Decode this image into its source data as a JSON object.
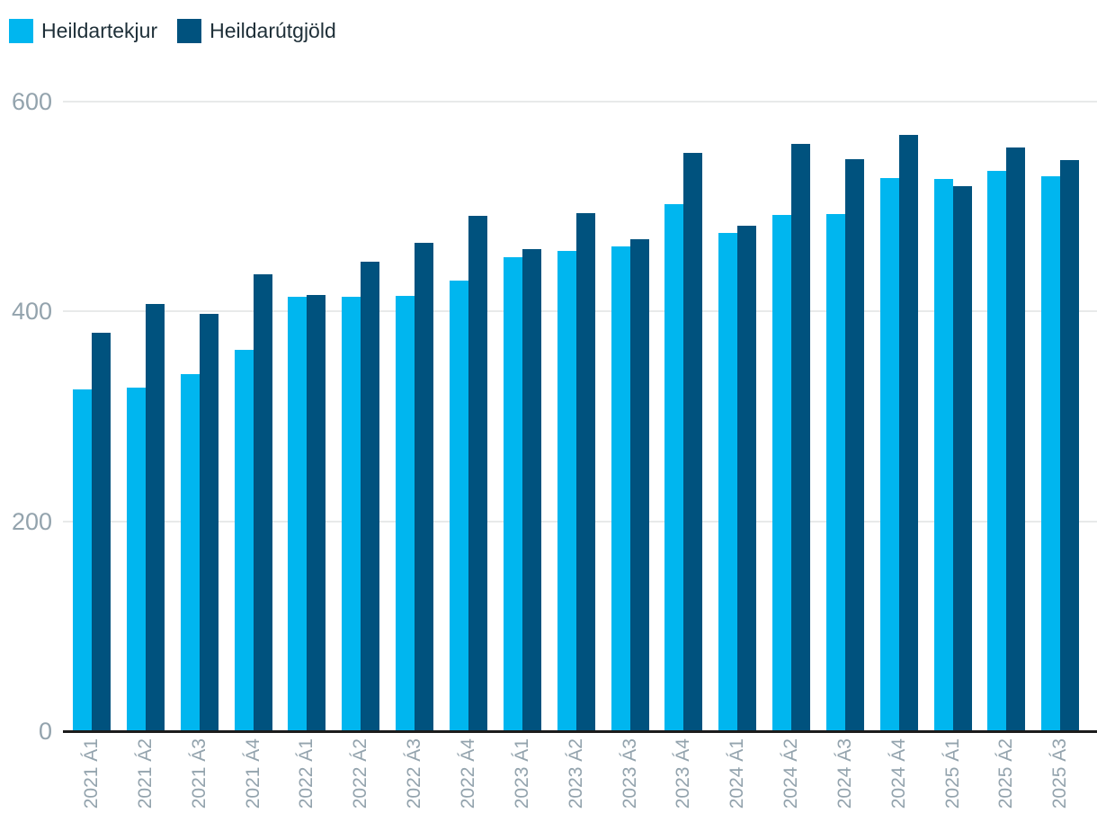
{
  "legend": {
    "items": [
      {
        "label": "Heildartekjur",
        "color": "#00b6ef"
      },
      {
        "label": "Heildarútgjöld",
        "color": "#00527e"
      }
    ]
  },
  "chart_data": {
    "type": "bar",
    "title": "",
    "categories": [
      "2021 Á1",
      "2021 Á2",
      "2021 Á3",
      "2021 Á4",
      "2022 Á1",
      "2022 Á2",
      "2022 Á3",
      "2022 Á4",
      "2023 Á1",
      "2023 Á2",
      "2023 Á3",
      "2023 Á4",
      "2024 Á1",
      "2024 Á2",
      "2024 Á3",
      "2024 Á4",
      "2025 Á1",
      "2025 Á2",
      "2025 Á3"
    ],
    "series": [
      {
        "name": "Heildartekjur",
        "color": "#00b6ef",
        "values": [
          326,
          327,
          340,
          363,
          414,
          414,
          415,
          429,
          452,
          458,
          462,
          502,
          475,
          492,
          493,
          527,
          526,
          534,
          529
        ]
      },
      {
        "name": "Heildarútgjöld",
        "color": "#00527e",
        "values": [
          380,
          407,
          398,
          435,
          416,
          447,
          465,
          491,
          459,
          494,
          469,
          551,
          482,
          560,
          545,
          568,
          519,
          556,
          544
        ]
      }
    ],
    "xlabel": "",
    "ylabel": "",
    "y_ticks": [
      0,
      200,
      400,
      600
    ],
    "ylim": [
      0,
      600
    ],
    "grid": true,
    "legend_position": "top-left"
  },
  "colors": {
    "background": "#ffffff",
    "axis_line": "#1c1c1c",
    "gridline": "#e8eaea",
    "tick_label": "#93a3ad",
    "legend_text": "#1e2f38"
  }
}
